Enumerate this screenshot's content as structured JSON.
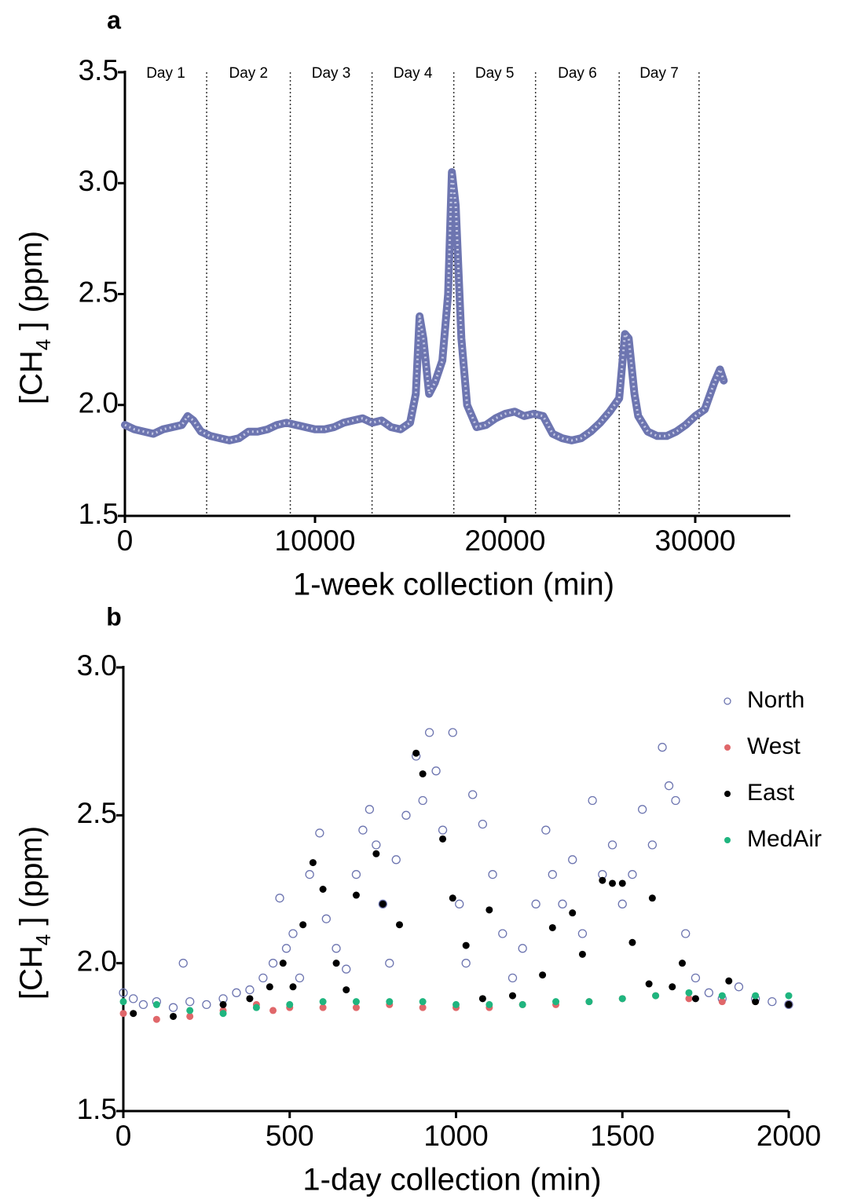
{
  "chart_data": [
    {
      "type": "line",
      "panel_label": "a",
      "x_label": "1-week collection (min)",
      "y_label": [
        "[CH",
        "4",
        " ] (ppm)"
      ],
      "xlim": [
        0,
        35000
      ],
      "ylim": [
        1.5,
        3.5
      ],
      "xticks": [
        0,
        10000,
        20000,
        30000
      ],
      "yticks": [
        1.5,
        {
          "value": 2,
          "label": "2.0"
        },
        2.5,
        {
          "value": 3,
          "label": "3.0"
        },
        3.5
      ],
      "vlines": [
        4300,
        8700,
        13000,
        17300,
        21600,
        26000,
        30200
      ],
      "annotations": [
        "Day 1",
        "Day 2",
        "Day 3",
        "Day 4",
        "Day 5",
        "Day 6",
        "Day 7"
      ],
      "series": [
        {
          "color": "#6d75b0",
          "x": [
            0,
            500,
            1000,
            1500,
            2000,
            2500,
            3000,
            3300,
            3600,
            4000,
            4500,
            5000,
            5500,
            6000,
            6500,
            7000,
            7500,
            8000,
            8500,
            9000,
            9500,
            10000,
            10500,
            11000,
            11500,
            12000,
            12500,
            13000,
            13500,
            14000,
            14500,
            15000,
            15300,
            15500,
            15700,
            16000,
            16300,
            16700,
            17000,
            17200,
            17400,
            17700,
            18000,
            18500,
            19000,
            19500,
            20000,
            20500,
            21000,
            21500,
            22000,
            22500,
            23000,
            23500,
            24000,
            24500,
            25000,
            25500,
            26000,
            26300,
            26500,
            26800,
            27000,
            27500,
            28000,
            28500,
            29000,
            29500,
            30000,
            30500,
            31000,
            31300,
            31500
          ],
          "values": [
            1.91,
            1.89,
            1.88,
            1.87,
            1.89,
            1.9,
            1.91,
            1.95,
            1.93,
            1.88,
            1.86,
            1.85,
            1.84,
            1.85,
            1.88,
            1.88,
            1.89,
            1.91,
            1.92,
            1.91,
            1.9,
            1.89,
            1.89,
            1.9,
            1.92,
            1.93,
            1.94,
            1.92,
            1.93,
            1.9,
            1.89,
            1.92,
            2.05,
            2.4,
            2.3,
            2.05,
            2.1,
            2.2,
            2.5,
            3.05,
            2.9,
            2.3,
            2.0,
            1.9,
            1.91,
            1.94,
            1.96,
            1.97,
            1.95,
            1.96,
            1.95,
            1.87,
            1.85,
            1.84,
            1.85,
            1.88,
            1.92,
            1.97,
            2.03,
            2.32,
            2.3,
            2.05,
            1.95,
            1.88,
            1.86,
            1.86,
            1.88,
            1.91,
            1.95,
            1.98,
            2.1,
            2.16,
            2.11
          ]
        }
      ]
    },
    {
      "type": "scatter",
      "panel_label": "b",
      "x_label": "1-day collection (min)",
      "y_label": [
        "[CH",
        "4",
        " ] (ppm)"
      ],
      "xlim": [
        0,
        2000
      ],
      "ylim": [
        1.5,
        3.0
      ],
      "xticks": [
        0,
        500,
        1000,
        1500,
        2000
      ],
      "yticks": [
        1.5,
        {
          "value": 2,
          "label": "2.0"
        },
        2.5,
        {
          "value": 3,
          "label": "3.0"
        }
      ],
      "legend": "top-right",
      "series": [
        {
          "name": "North",
          "color": "#6d75b0",
          "marker": "open",
          "x": [
            0,
            30,
            60,
            100,
            150,
            180,
            200,
            250,
            300,
            340,
            380,
            420,
            450,
            470,
            490,
            510,
            530,
            560,
            590,
            610,
            640,
            670,
            700,
            720,
            740,
            760,
            780,
            800,
            820,
            850,
            880,
            900,
            920,
            940,
            960,
            990,
            1010,
            1030,
            1050,
            1080,
            1110,
            1140,
            1170,
            1200,
            1240,
            1270,
            1290,
            1320,
            1350,
            1380,
            1410,
            1440,
            1470,
            1500,
            1530,
            1560,
            1590,
            1620,
            1640,
            1660,
            1690,
            1720,
            1760,
            1800,
            1850,
            1900,
            1950,
            2000
          ],
          "values": [
            1.9,
            1.88,
            1.86,
            1.87,
            1.85,
            2.0,
            1.87,
            1.86,
            1.88,
            1.9,
            1.91,
            1.95,
            2.0,
            2.22,
            2.05,
            2.1,
            1.95,
            2.3,
            2.44,
            2.15,
            2.05,
            1.98,
            2.3,
            2.45,
            2.52,
            2.4,
            2.2,
            2.0,
            2.35,
            2.5,
            2.7,
            2.55,
            2.78,
            2.65,
            2.45,
            2.78,
            2.2,
            2.0,
            2.57,
            2.47,
            2.3,
            2.1,
            1.95,
            2.05,
            2.2,
            2.45,
            2.3,
            2.2,
            2.35,
            2.1,
            2.55,
            2.3,
            2.4,
            2.2,
            2.3,
            2.52,
            2.4,
            2.73,
            2.6,
            2.55,
            2.1,
            1.95,
            1.9,
            1.88,
            1.92,
            1.88,
            1.87,
            1.86
          ]
        },
        {
          "name": "West",
          "color": "#e0676a",
          "marker": "filled",
          "x": [
            0,
            100,
            200,
            300,
            400,
            450,
            500,
            600,
            700,
            800,
            900,
            1000,
            1100,
            1200,
            1300,
            1400,
            1500,
            1600,
            1700,
            1800,
            1900,
            2000
          ],
          "values": [
            1.83,
            1.81,
            1.82,
            1.84,
            1.86,
            1.84,
            1.85,
            1.85,
            1.85,
            1.86,
            1.85,
            1.85,
            1.85,
            1.86,
            1.86,
            1.87,
            1.88,
            1.89,
            1.88,
            1.87,
            1.87,
            1.86
          ]
        },
        {
          "name": "East",
          "color": "#000000",
          "marker": "filled",
          "x": [
            30,
            150,
            300,
            380,
            440,
            480,
            510,
            540,
            570,
            600,
            640,
            670,
            700,
            760,
            780,
            830,
            880,
            900,
            960,
            990,
            1030,
            1080,
            1100,
            1170,
            1260,
            1290,
            1350,
            1380,
            1440,
            1470,
            1500,
            1530,
            1580,
            1590,
            1650,
            1680,
            1720,
            1820,
            1900,
            2000
          ],
          "values": [
            1.83,
            1.82,
            1.86,
            1.88,
            1.92,
            2.0,
            1.92,
            2.13,
            2.34,
            2.25,
            2.0,
            1.91,
            2.23,
            2.37,
            2.2,
            2.13,
            2.71,
            2.64,
            2.42,
            2.22,
            2.06,
            1.88,
            2.18,
            1.89,
            1.96,
            2.12,
            2.17,
            2.03,
            2.28,
            2.27,
            2.27,
            2.07,
            1.93,
            2.22,
            1.92,
            2.0,
            1.88,
            1.94,
            1.87,
            1.86
          ]
        },
        {
          "name": "MedAir",
          "color": "#1fb57f",
          "marker": "filled",
          "x": [
            0,
            100,
            200,
            300,
            400,
            500,
            600,
            700,
            800,
            900,
            1000,
            1100,
            1200,
            1300,
            1400,
            1500,
            1600,
            1700,
            1800,
            1900,
            2000
          ],
          "values": [
            1.87,
            1.86,
            1.84,
            1.83,
            1.85,
            1.86,
            1.87,
            1.87,
            1.87,
            1.87,
            1.86,
            1.86,
            1.86,
            1.87,
            1.87,
            1.88,
            1.89,
            1.9,
            1.89,
            1.89,
            1.89
          ]
        }
      ]
    }
  ]
}
